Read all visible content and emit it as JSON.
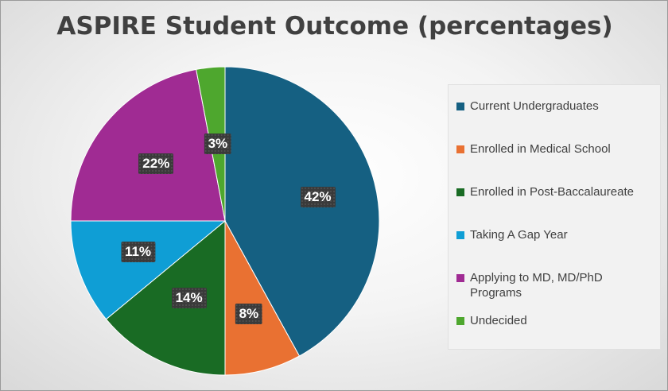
{
  "chart_data": {
    "type": "pie",
    "title": "ASPIRE Student Outcome (percentages)",
    "categories": [
      "Current Undergraduates",
      "Enrolled in Medical School",
      "Enrolled in Post-Baccalaureate",
      "Taking A Gap Year",
      "Applying to MD, MD/PhD Programs",
      "Undecided"
    ],
    "values": [
      42,
      8,
      14,
      11,
      22,
      3
    ],
    "data_labels": [
      "42%",
      "8%",
      "14%",
      "11%",
      "22%",
      "3%"
    ],
    "colors": [
      "#156082",
      "#E97132",
      "#196B24",
      "#0F9ED5",
      "#A02B93",
      "#4EA72E"
    ],
    "legend_position": "right",
    "start_angle": "12 o'clock",
    "direction": "clockwise"
  }
}
